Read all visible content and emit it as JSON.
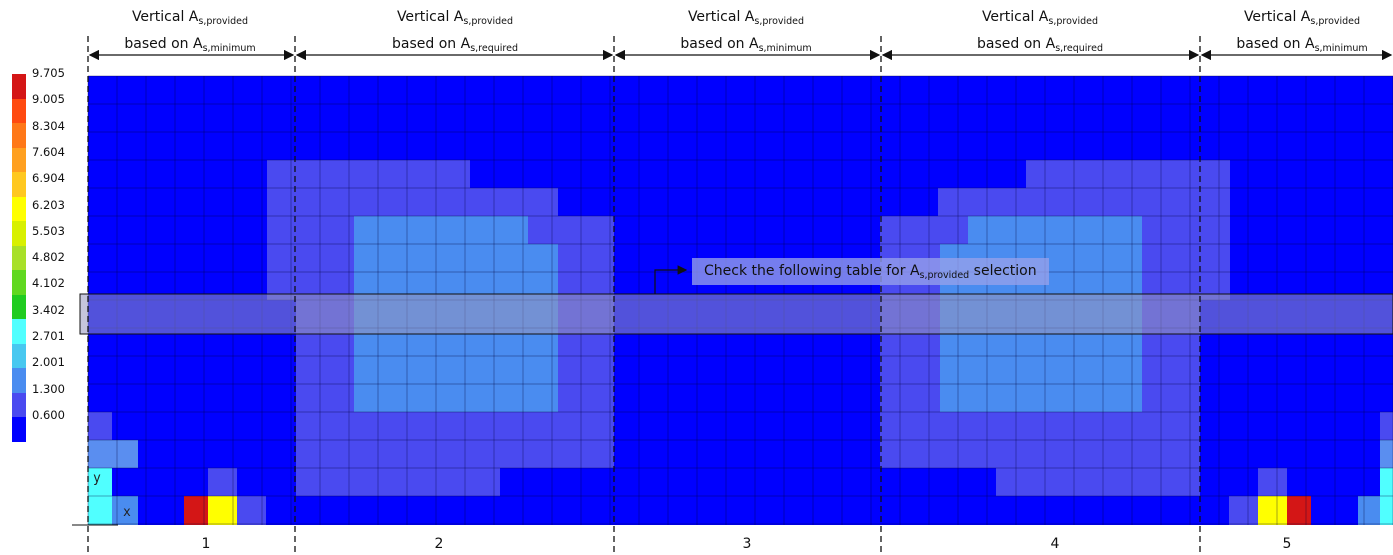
{
  "headers": [
    {
      "line1": "Vertical A",
      "line1_sub": "s,provided",
      "line2": "based on A",
      "line2_sub": "s,minimum"
    },
    {
      "line1": "Vertical A",
      "line1_sub": "s,provided",
      "line2": "based on A",
      "line2_sub": "s,required"
    },
    {
      "line1": "Vertical A",
      "line1_sub": "s,provided",
      "line2": "based on A",
      "line2_sub": "s,minimum"
    },
    {
      "line1": "Vertical A",
      "line1_sub": "s,provided",
      "line2": "based on A",
      "line2_sub": "s,required"
    },
    {
      "line1": "Vertical A",
      "line1_sub": "s,provided",
      "line2": "based on A",
      "line2_sub": "s,minimum"
    }
  ],
  "legend": {
    "labels": [
      "9.705",
      "9.005",
      "8.304",
      "7.604",
      "6.904",
      "6.203",
      "5.503",
      "4.802",
      "4.102",
      "3.402",
      "2.701",
      "2.001",
      "1.300",
      "0.600"
    ],
    "colors": [
      "#d41616",
      "#ff4a10",
      "#ff7818",
      "#ffa020",
      "#ffc820",
      "#ffff00",
      "#d8f000",
      "#a8e028",
      "#60d820",
      "#20cc20",
      "#50ffff",
      "#48c8f0",
      "#4a8cf0",
      "#4a4af0",
      "#0000ff"
    ]
  },
  "bays": [
    "1",
    "2",
    "3",
    "4",
    "5"
  ],
  "note": {
    "text": "Check the following table for A",
    "sub": "s,provided",
    "text2": " selection"
  },
  "axes": {
    "y": "y",
    "x": "x"
  },
  "colors": {
    "c0": "#0000ff",
    "c1": "#4a4af0",
    "c2": "#4a8cf0",
    "c3": "#4ab3f5",
    "c4": "#50ffff",
    "c5": "#ffff00",
    "c6": "#d41616",
    "c7": "#5a8ef0"
  }
}
